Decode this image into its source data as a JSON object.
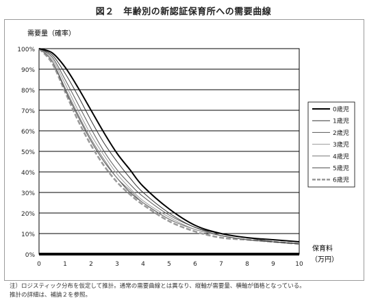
{
  "figure": {
    "title": "図２　年齢別の新認証保育所への需要曲線",
    "note_line1": "注）ロジスティック分布を仮定して推計。通常の需要曲線とは異なり、縦軸が需要量、横軸が価格となっている。",
    "note_line2": "推計の詳細は、補論２を参照。"
  },
  "chart_data": {
    "type": "line",
    "title": "",
    "ylabel": "需要量（確率）",
    "xlabel_line1": "保育料",
    "xlabel_line2": "（万円）",
    "xlim": [
      0,
      10
    ],
    "ylim": [
      0,
      100
    ],
    "x_ticks": [
      "0",
      "1",
      "2",
      "3",
      "4",
      "5",
      "6",
      "7",
      "8",
      "9",
      "10"
    ],
    "y_ticks": [
      "0%",
      "10%",
      "20%",
      "30%",
      "40%",
      "50%",
      "60%",
      "70%",
      "80%",
      "90%",
      "100%"
    ],
    "grid": "horizontal",
    "legend_position": "right",
    "x": [
      0,
      0.5,
      1,
      1.5,
      2,
      2.5,
      3,
      3.5,
      4,
      5,
      6,
      7,
      8,
      9,
      10
    ],
    "series": [
      {
        "name": "0歳児",
        "color": "#000000",
        "style": "solid-thick",
        "values": [
          100,
          98,
          91,
          81,
          70,
          59,
          49,
          41,
          33,
          22,
          14,
          10,
          8,
          7,
          6
        ]
      },
      {
        "name": "1歳児",
        "color": "#333333",
        "style": "solid",
        "values": [
          100,
          97,
          88,
          77,
          65,
          54,
          45,
          37,
          30,
          20,
          13,
          10,
          8,
          6,
          5
        ]
      },
      {
        "name": "2歳児",
        "color": "#555555",
        "style": "solid",
        "values": [
          100,
          96,
          85,
          73,
          61,
          50,
          41,
          34,
          28,
          19,
          13,
          9,
          7,
          6,
          5
        ]
      },
      {
        "name": "3歳児",
        "color": "#9a9a9a",
        "style": "solid",
        "values": [
          100,
          95,
          83,
          70,
          58,
          48,
          39,
          32,
          26,
          18,
          12,
          9,
          7,
          6,
          5
        ]
      },
      {
        "name": "4歳児",
        "color": "#777777",
        "style": "solid",
        "values": [
          100,
          94,
          81,
          68,
          56,
          46,
          37,
          31,
          25,
          17,
          12,
          9,
          7,
          6,
          5
        ]
      },
      {
        "name": "5歳児",
        "color": "#444444",
        "style": "solid",
        "values": [
          100,
          94,
          80,
          67,
          55,
          45,
          37,
          30,
          25,
          17,
          12,
          9,
          7,
          6,
          5
        ]
      },
      {
        "name": "6歳児",
        "color": "#9a9a9a",
        "style": "dashed-thick",
        "values": [
          100,
          93,
          79,
          65,
          53,
          43,
          35,
          29,
          24,
          16,
          11,
          8,
          7,
          6,
          5
        ]
      }
    ]
  }
}
